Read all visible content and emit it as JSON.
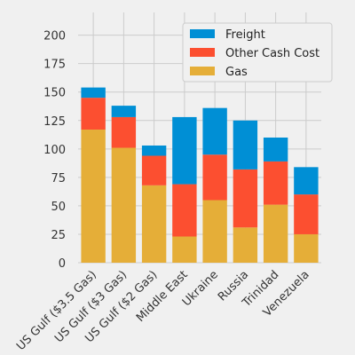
{
  "chart_data": {
    "type": "bar",
    "stacked": true,
    "categories": [
      "US Gulf ($3.5 Gas)",
      "US Gulf ($3 Gas)",
      "US Gulf ($2 Gas)",
      "Middle East",
      "Ukraine",
      "Russia",
      "Trinidad",
      "Venezuela"
    ],
    "series": [
      {
        "name": "Gas",
        "color": "#e5ae38",
        "values": [
          117,
          101,
          68,
          23,
          55,
          31,
          51,
          25
        ]
      },
      {
        "name": "Other Cash Cost",
        "color": "#fc4f30",
        "values": [
          28,
          27,
          26,
          46,
          40,
          51,
          38,
          35
        ]
      },
      {
        "name": "Freight",
        "color": "#008fd5",
        "values": [
          9,
          10,
          9,
          59,
          41,
          43,
          21,
          24
        ]
      }
    ],
    "legend_order": [
      "Freight",
      "Other Cash Cost",
      "Gas"
    ],
    "legend_position": "top-right",
    "yticks": [
      0,
      25,
      50,
      75,
      100,
      125,
      150,
      175,
      200
    ],
    "ylim": [
      0,
      220
    ],
    "grid": true,
    "title": "",
    "xlabel": "",
    "ylabel": ""
  }
}
